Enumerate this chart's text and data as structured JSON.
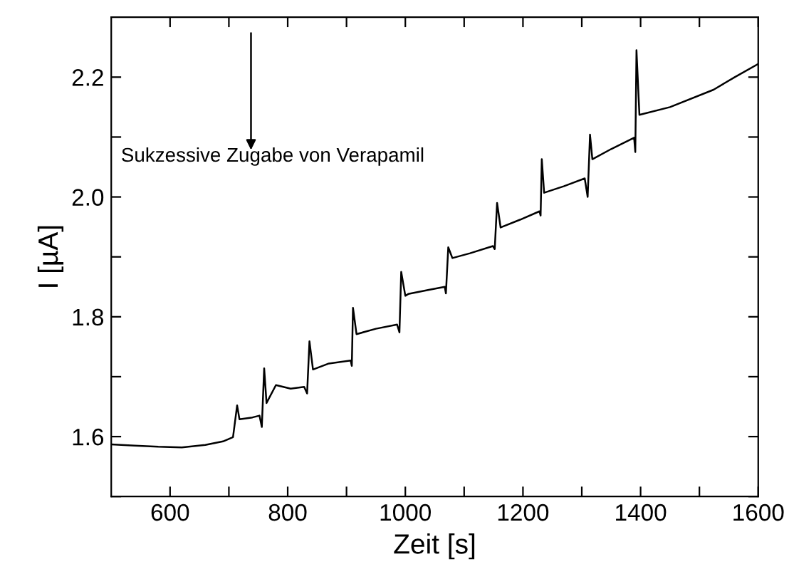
{
  "chart_data": {
    "type": "line",
    "xlabel": "Zeit [s]",
    "ylabel": "I [µA]",
    "annotations": [
      "Sukzessive Zugabe von Verapamil"
    ],
    "xlim": [
      500,
      1600
    ],
    "ylim": [
      1.5,
      2.3
    ],
    "xticks": [
      600,
      {
        "value": 700,
        "label": null
      },
      800,
      {
        "value": 900,
        "label": null
      },
      1000,
      {
        "value": 1100,
        "label": null
      },
      1200,
      {
        "value": 1300,
        "label": null
      },
      1400,
      {
        "value": 1500,
        "label": null
      },
      1600
    ],
    "yticks": [
      {
        "value": 1.5,
        "label": null
      },
      1.6,
      {
        "value": 1.7,
        "label": null
      },
      1.8,
      {
        "value": 1.9,
        "label": null
      },
      {
        "value": 2.0,
        "label": "2.0"
      },
      {
        "value": 2.1,
        "label": null
      },
      2.2
    ],
    "grid": false,
    "legend": false,
    "marker": "none",
    "line_style": "solid",
    "series": [
      {
        "color": "#000000",
        "x": [
          500,
          540,
          580,
          620,
          660,
          690,
          707,
          714,
          718,
          740,
          752,
          756,
          760,
          764,
          780,
          805,
          828,
          833,
          837,
          843,
          870,
          907,
          909,
          911,
          917,
          950,
          986,
          990,
          993,
          1000,
          1005,
          1040,
          1067,
          1069,
          1073,
          1080,
          1110,
          1149,
          1152,
          1156,
          1162,
          1195,
          1228,
          1230,
          1232,
          1236,
          1270,
          1305,
          1310,
          1314,
          1318,
          1350,
          1389,
          1391,
          1393,
          1398,
          1450,
          1524,
          1560,
          1600
        ],
        "values": [
          1.587,
          1.585,
          1.583,
          1.582,
          1.586,
          1.592,
          1.599,
          1.652,
          1.629,
          1.632,
          1.635,
          1.616,
          1.714,
          1.656,
          1.686,
          1.68,
          1.683,
          1.672,
          1.759,
          1.712,
          1.722,
          1.727,
          1.718,
          1.815,
          1.771,
          1.78,
          1.787,
          1.774,
          1.875,
          1.835,
          1.838,
          1.845,
          1.85,
          1.839,
          1.916,
          1.898,
          1.906,
          1.918,
          1.913,
          1.99,
          1.949,
          1.962,
          1.976,
          1.969,
          2.063,
          2.007,
          2.018,
          2.031,
          2.0,
          2.104,
          2.063,
          2.08,
          2.099,
          2.075,
          2.245,
          2.137,
          2.15,
          2.179,
          2.2,
          2.222
        ]
      }
    ]
  }
}
